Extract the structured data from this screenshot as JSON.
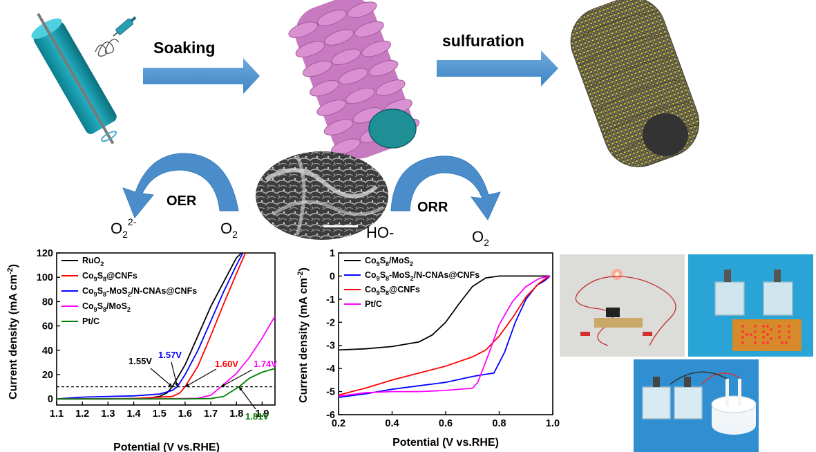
{
  "process": {
    "step1_label": "Soaking",
    "step2_label": "sulfuration"
  },
  "reactions": {
    "oer": {
      "label": "OER",
      "from": "O",
      "from_sub": "2",
      "to": "O",
      "to_sub": "2",
      "to_sup": "2-"
    },
    "orr": {
      "label": "ORR",
      "from": "HO-",
      "to": "O",
      "to_sub": "2"
    }
  },
  "chart_data": [
    {
      "type": "line",
      "xlabel": "Potential (V vs.RHE)",
      "ylabel": "Current density (mA cm",
      "ylabel_sup": "-2",
      "ylabel_close": ")",
      "xlim": [
        1.1,
        1.95
      ],
      "ylim": [
        -5,
        120
      ],
      "xticks": [
        "1.1",
        "1.2",
        "1.3",
        "1.4",
        "1.5",
        "1.6",
        "1.7",
        "1.8",
        "1.9"
      ],
      "yticks": [
        "0",
        "20",
        "40",
        "60",
        "80",
        "100",
        "120"
      ],
      "reference_line_y": 10,
      "legend": [
        {
          "label": "RuO",
          "sub": "2",
          "color": "#000000"
        },
        {
          "label": "Co",
          "sub": "9",
          "rest": "S",
          "sub2": "8",
          "tail": "@CNFs",
          "color": "#ff0000"
        },
        {
          "label": "Co",
          "sub": "9",
          "rest": "S",
          "sub2": "8",
          "tail": "-MoS",
          "sub3": "2",
          "tail2": "/N-CNAs@CNFs",
          "color": "#0000ff"
        },
        {
          "label": "Co",
          "sub": "9",
          "rest": "S",
          "sub2": "8",
          "tail": "/MoS",
          "sub3": "2",
          "color": "#ff00ff"
        },
        {
          "label": "Pt/C",
          "color": "#008000"
        }
      ],
      "annotations": [
        {
          "text": "1.55V",
          "color": "#000000"
        },
        {
          "text": "1.57V",
          "color": "#0000ff"
        },
        {
          "text": "1.60V",
          "color": "#ff0000"
        },
        {
          "text": "1.74V",
          "color": "#ff00ff"
        },
        {
          "text": "1.81V",
          "color": "#008000"
        }
      ],
      "series": [
        {
          "color": "#000000",
          "x": [
            1.1,
            1.3,
            1.45,
            1.5,
            1.53,
            1.55,
            1.6,
            1.65,
            1.7,
            1.75,
            1.8,
            1.82
          ],
          "y": [
            0,
            0,
            0.5,
            2,
            5,
            10,
            28,
            52,
            76,
            96,
            116,
            120
          ]
        },
        {
          "color": "#ff0000",
          "x": [
            1.1,
            1.4,
            1.55,
            1.58,
            1.6,
            1.65,
            1.7,
            1.75,
            1.8,
            1.835
          ],
          "y": [
            0,
            0.3,
            2,
            5,
            10,
            27,
            52,
            78,
            103,
            120
          ]
        },
        {
          "color": "#0000ff",
          "x": [
            1.1,
            1.2,
            1.4,
            1.5,
            1.55,
            1.57,
            1.6,
            1.65,
            1.7,
            1.75,
            1.8,
            1.825
          ],
          "y": [
            0,
            1.5,
            2.5,
            4,
            7,
            10,
            20,
            40,
            64,
            88,
            110,
            120
          ]
        },
        {
          "color": "#ff00ff",
          "x": [
            1.1,
            1.5,
            1.65,
            1.7,
            1.74,
            1.8,
            1.85,
            1.9,
            1.95
          ],
          "y": [
            0,
            0,
            0.5,
            3,
            10,
            21,
            34,
            50,
            68
          ]
        },
        {
          "color": "#008000",
          "x": [
            1.1,
            1.6,
            1.7,
            1.75,
            1.78,
            1.81,
            1.85,
            1.9,
            1.95
          ],
          "y": [
            0,
            0,
            0.3,
            2,
            6,
            10,
            17,
            22,
            25
          ]
        }
      ]
    },
    {
      "type": "line",
      "xlabel": "Potential (V vs.RHE)",
      "ylabel": "Current density (mA cm",
      "ylabel_sup": "-2",
      "ylabel_close": ")",
      "xlim": [
        0.2,
        1.0
      ],
      "ylim": [
        -6,
        1
      ],
      "xticks": [
        "0.2",
        "0.4",
        "0.6",
        "0.8",
        "1.0"
      ],
      "yticks": [
        "1",
        "0",
        "-1",
        "-2",
        "-3",
        "-4",
        "-5",
        "-6"
      ],
      "legend": [
        {
          "label": "Co",
          "sub": "9",
          "rest": "S",
          "sub2": "8",
          "tail": "/MoS",
          "sub3": "2",
          "color": "#000000"
        },
        {
          "label": "Co",
          "sub": "9",
          "rest": "S",
          "sub2": "8",
          "tail": "-MoS",
          "sub3": "2",
          "tail2": "/N-CNAs@CNFs",
          "color": "#0000ff"
        },
        {
          "label": "Co",
          "sub": "9",
          "rest": "S",
          "sub2": "8",
          "tail": "@CNFs",
          "color": "#ff0000"
        },
        {
          "label": "Pt/C",
          "color": "#ff00ff"
        }
      ],
      "series": [
        {
          "color": "#000000",
          "x": [
            0.2,
            0.3,
            0.4,
            0.5,
            0.55,
            0.6,
            0.65,
            0.7,
            0.75,
            0.8,
            0.9,
            0.99
          ],
          "y": [
            -3.2,
            -3.15,
            -3.05,
            -2.85,
            -2.55,
            -2.0,
            -1.2,
            -0.45,
            -0.08,
            0,
            0,
            0
          ]
        },
        {
          "color": "#0000ff",
          "x": [
            0.2,
            0.3,
            0.4,
            0.5,
            0.6,
            0.7,
            0.75,
            0.78,
            0.82,
            0.86,
            0.9,
            0.94,
            0.97,
            0.99
          ],
          "y": [
            -5.25,
            -5.1,
            -4.9,
            -4.75,
            -4.6,
            -4.35,
            -4.25,
            -4.2,
            -3.3,
            -2.0,
            -1.0,
            -0.4,
            -0.2,
            0
          ]
        },
        {
          "color": "#ff0000",
          "x": [
            0.2,
            0.3,
            0.4,
            0.5,
            0.6,
            0.7,
            0.75,
            0.8,
            0.85,
            0.9,
            0.95,
            0.98,
            0.99
          ],
          "y": [
            -5.15,
            -4.85,
            -4.5,
            -4.2,
            -3.9,
            -3.5,
            -3.2,
            -2.6,
            -1.8,
            -0.9,
            -0.3,
            -0.05,
            0
          ]
        },
        {
          "color": "#ff00ff",
          "x": [
            0.2,
            0.3,
            0.4,
            0.5,
            0.6,
            0.7,
            0.72,
            0.76,
            0.8,
            0.85,
            0.9,
            0.95,
            0.99
          ],
          "y": [
            -5.2,
            -5.05,
            -5.0,
            -5.0,
            -4.95,
            -4.85,
            -4.6,
            -3.4,
            -2.1,
            -1.1,
            -0.45,
            -0.1,
            0
          ]
        }
      ]
    }
  ]
}
